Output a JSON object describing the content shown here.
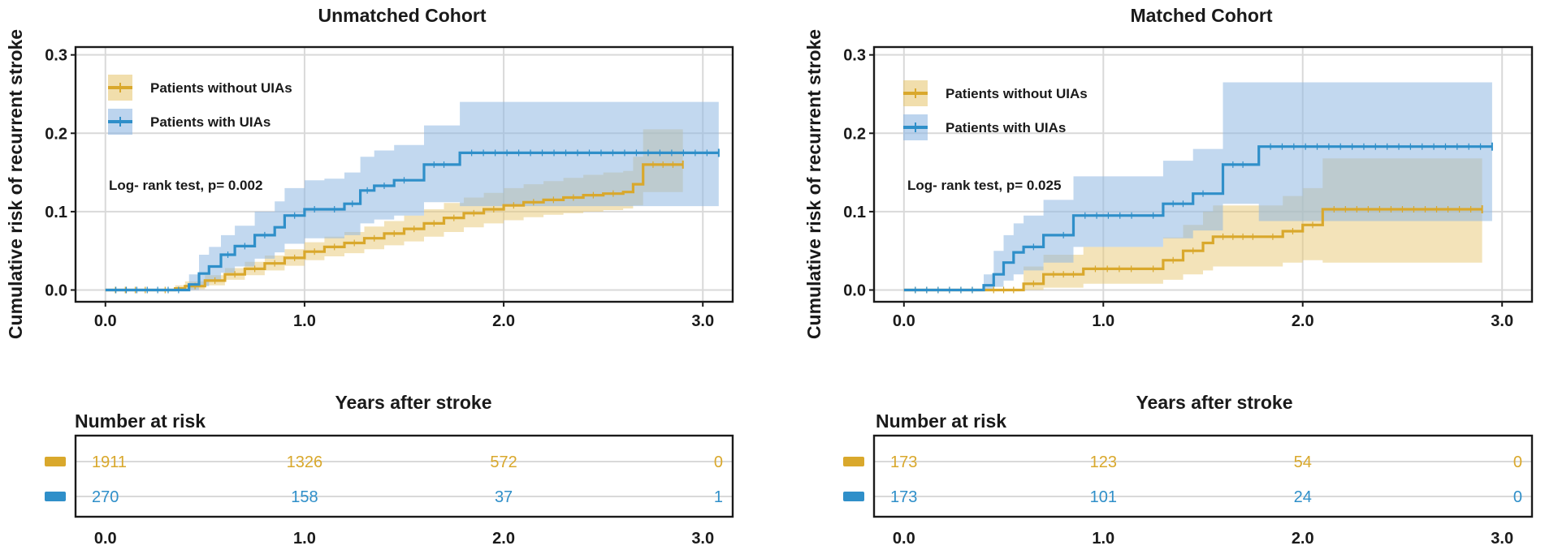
{
  "colors": {
    "without": "#d9a82c",
    "without_band": "#e8c874",
    "with": "#2f8fc9",
    "with_band": "#8fb8e2"
  },
  "chart_data": [
    {
      "type": "line",
      "subtype": "kaplan-meier cumulative incidence",
      "title": "Unmatched Cohort",
      "xlabel": "Years after stroke",
      "ylabel": "Cumulative risk of recurrent stroke",
      "xlim": [
        -0.15,
        3.15
      ],
      "ylim": [
        -0.015,
        0.31
      ],
      "xticks": [
        0,
        1,
        2,
        3
      ],
      "xtick_labels": [
        "0.0",
        "1.0",
        "2.0",
        "3.0"
      ],
      "yticks": [
        0,
        0.1,
        0.2,
        0.3
      ],
      "ytick_labels": [
        "0.0",
        "0.1",
        "0.2",
        "0.3"
      ],
      "annotation": "Log- rank test, p= 0.002",
      "legend": [
        "Patients without UIAs",
        "Patients with UIAs"
      ],
      "series": [
        {
          "name": "Patients without UIAs",
          "key": "without",
          "x": [
            0,
            0.25,
            0.35,
            0.4,
            0.5,
            0.6,
            0.7,
            0.8,
            0.9,
            1.0,
            1.1,
            1.2,
            1.3,
            1.4,
            1.5,
            1.6,
            1.7,
            1.8,
            1.9,
            2.0,
            2.1,
            2.2,
            2.3,
            2.4,
            2.5,
            2.6,
            2.65,
            2.7,
            2.9
          ],
          "y": [
            0,
            0,
            0.002,
            0.005,
            0.012,
            0.02,
            0.027,
            0.034,
            0.041,
            0.049,
            0.055,
            0.06,
            0.066,
            0.072,
            0.078,
            0.085,
            0.092,
            0.098,
            0.103,
            0.108,
            0.112,
            0.115,
            0.118,
            0.121,
            0.123,
            0.125,
            0.135,
            0.16,
            0.16
          ],
          "lower": [
            0,
            0,
            0,
            0.001,
            0.006,
            0.013,
            0.019,
            0.025,
            0.031,
            0.038,
            0.043,
            0.047,
            0.052,
            0.057,
            0.062,
            0.068,
            0.074,
            0.08,
            0.085,
            0.089,
            0.093,
            0.096,
            0.098,
            0.1,
            0.102,
            0.104,
            0.108,
            0.125,
            0.125
          ],
          "upper": [
            0,
            0,
            0.006,
            0.011,
            0.019,
            0.028,
            0.036,
            0.044,
            0.052,
            0.061,
            0.068,
            0.074,
            0.081,
            0.088,
            0.095,
            0.103,
            0.111,
            0.118,
            0.124,
            0.13,
            0.135,
            0.139,
            0.143,
            0.147,
            0.15,
            0.152,
            0.17,
            0.205,
            0.205
          ]
        },
        {
          "name": "Patients with UIAs",
          "key": "with",
          "x": [
            0,
            0.42,
            0.47,
            0.52,
            0.58,
            0.65,
            0.75,
            0.85,
            0.9,
            1.0,
            1.1,
            1.2,
            1.28,
            1.35,
            1.45,
            1.55,
            1.6,
            1.75,
            1.78,
            3.08
          ],
          "y": [
            0,
            0.007,
            0.021,
            0.03,
            0.045,
            0.056,
            0.07,
            0.08,
            0.095,
            0.103,
            0.103,
            0.11,
            0.127,
            0.133,
            0.14,
            0.14,
            0.16,
            0.16,
            0.175,
            0.175
          ],
          "lower": [
            0,
            0,
            0.005,
            0.012,
            0.022,
            0.03,
            0.04,
            0.048,
            0.059,
            0.066,
            0.066,
            0.07,
            0.085,
            0.09,
            0.095,
            0.095,
            0.112,
            0.112,
            0.107,
            0.107
          ],
          "upper": [
            0,
            0.02,
            0.045,
            0.055,
            0.07,
            0.082,
            0.1,
            0.113,
            0.13,
            0.14,
            0.142,
            0.15,
            0.17,
            0.178,
            0.185,
            0.185,
            0.21,
            0.21,
            0.24,
            0.24
          ]
        }
      ],
      "risk_table": {
        "title": "Number at risk",
        "times": [
          0,
          1,
          2,
          3
        ],
        "rows": [
          {
            "key": "without",
            "values": [
              "1911",
              "1326",
              "572",
              "0"
            ]
          },
          {
            "key": "with",
            "values": [
              "270",
              "158",
              "37",
              "1"
            ]
          }
        ],
        "xtick_labels": [
          "0.0",
          "1.0",
          "2.0",
          "3.0"
        ]
      }
    },
    {
      "type": "line",
      "subtype": "kaplan-meier cumulative incidence",
      "title": "Matched Cohort",
      "xlabel": "Years after stroke",
      "ylabel": "Cumulative risk of recurrent stroke",
      "xlim": [
        -0.15,
        3.15
      ],
      "ylim": [
        -0.015,
        0.31
      ],
      "xticks": [
        0,
        1,
        2,
        3
      ],
      "xtick_labels": [
        "0.0",
        "1.0",
        "2.0",
        "3.0"
      ],
      "yticks": [
        0,
        0.1,
        0.2,
        0.3
      ],
      "ytick_labels": [
        "0.0",
        "0.1",
        "0.2",
        "0.3"
      ],
      "annotation": "Log- rank test, p= 0.025",
      "legend": [
        "Patients without UIAs",
        "Patients with UIAs"
      ],
      "series": [
        {
          "name": "Patients without UIAs",
          "key": "without",
          "x": [
            0,
            0.4,
            0.6,
            0.7,
            0.9,
            1.2,
            1.3,
            1.4,
            1.5,
            1.55,
            1.8,
            1.9,
            2.0,
            2.1,
            2.9
          ],
          "y": [
            0,
            0,
            0.008,
            0.02,
            0.027,
            0.027,
            0.038,
            0.05,
            0.06,
            0.068,
            0.068,
            0.075,
            0.083,
            0.103,
            0.103
          ],
          "lower": [
            0,
            0,
            0,
            0.003,
            0.008,
            0.008,
            0.013,
            0.02,
            0.025,
            0.03,
            0.03,
            0.035,
            0.038,
            0.035,
            0.035
          ],
          "upper": [
            0,
            0,
            0.03,
            0.045,
            0.055,
            0.055,
            0.067,
            0.083,
            0.1,
            0.108,
            0.108,
            0.12,
            0.13,
            0.168,
            0.168
          ]
        },
        {
          "name": "Patients with UIAs",
          "key": "with",
          "x": [
            0,
            0.4,
            0.45,
            0.5,
            0.55,
            0.6,
            0.7,
            0.75,
            0.85,
            1.2,
            1.3,
            1.45,
            1.55,
            1.6,
            1.75,
            1.78,
            2.95
          ],
          "y": [
            0,
            0.006,
            0.02,
            0.035,
            0.048,
            0.055,
            0.07,
            0.07,
            0.095,
            0.095,
            0.11,
            0.123,
            0.123,
            0.16,
            0.16,
            0.183,
            0.183
          ],
          "lower": [
            0,
            0,
            0.004,
            0.012,
            0.02,
            0.025,
            0.035,
            0.035,
            0.055,
            0.055,
            0.066,
            0.076,
            0.076,
            0.11,
            0.11,
            0.088,
            0.088
          ],
          "upper": [
            0,
            0.02,
            0.05,
            0.07,
            0.085,
            0.095,
            0.115,
            0.115,
            0.145,
            0.145,
            0.165,
            0.18,
            0.18,
            0.265,
            0.265,
            0.265,
            0.265
          ]
        }
      ],
      "risk_table": {
        "title": "Number at risk",
        "times": [
          0,
          1,
          2,
          3
        ],
        "rows": [
          {
            "key": "without",
            "values": [
              "173",
              "123",
              "54",
              "0"
            ]
          },
          {
            "key": "with",
            "values": [
              "173",
              "101",
              "24",
              "0"
            ]
          }
        ],
        "xtick_labels": [
          "0.0",
          "1.0",
          "2.0",
          "3.0"
        ]
      }
    }
  ]
}
